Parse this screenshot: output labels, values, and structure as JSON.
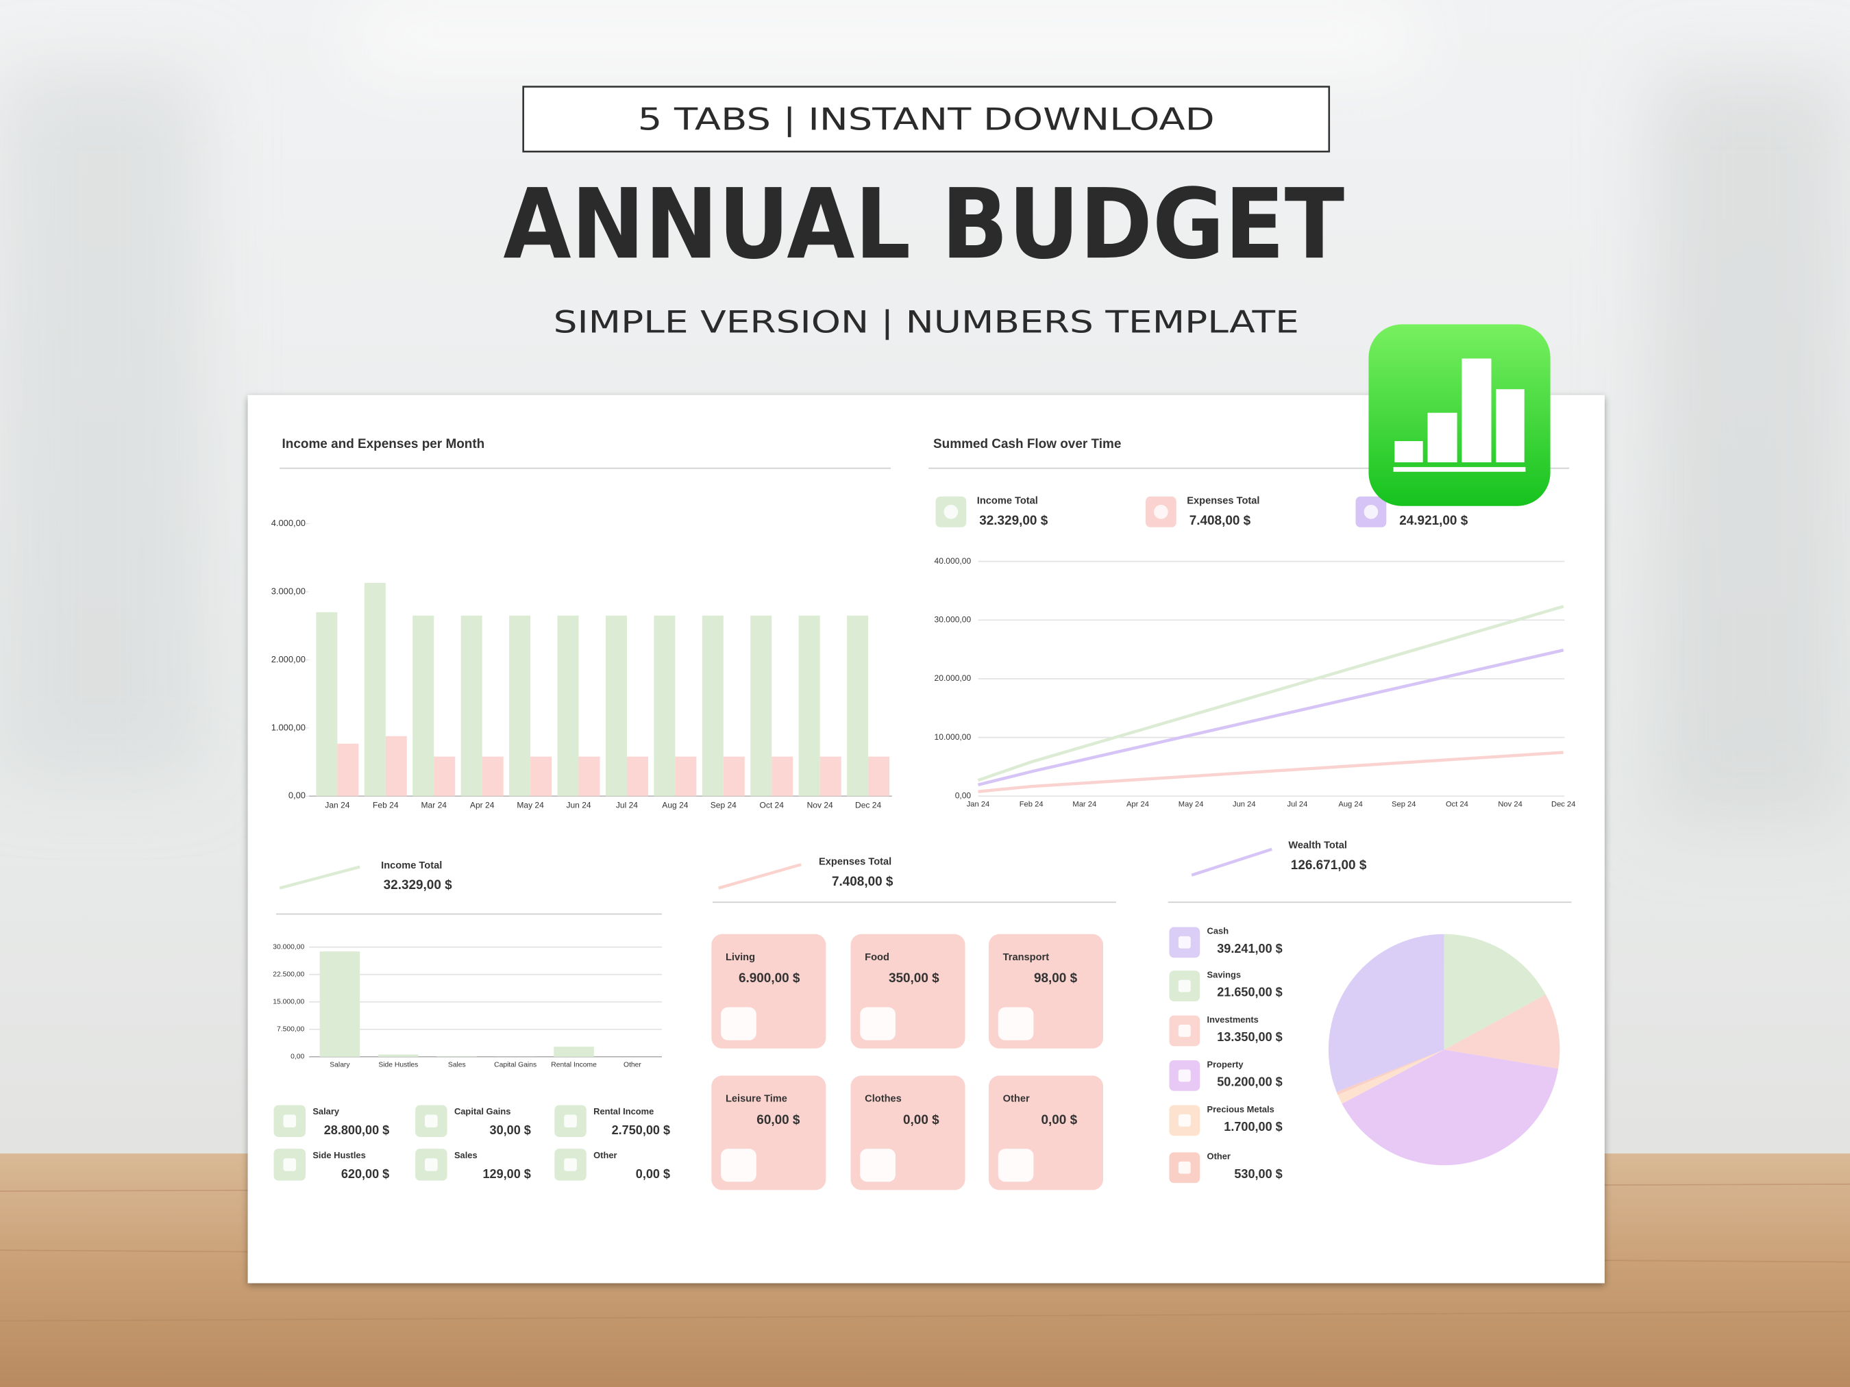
{
  "header": {
    "badge": "5 TABS | INSTANT DOWNLOAD",
    "title": "ANNUAL BUDGET",
    "subtitle": "SIMPLE VERSION | NUMBERS TEMPLATE"
  },
  "chart_data": [
    {
      "type": "bar",
      "title": "Income and Expenses per Month",
      "categories": [
        "Jan 24",
        "Feb 24",
        "Mar 24",
        "Apr 24",
        "May 24",
        "Jun 24",
        "Jul 24",
        "Aug 24",
        "Sep 24",
        "Oct 24",
        "Nov 24",
        "Dec 24"
      ],
      "series": [
        {
          "color": "#dcebd4",
          "values": [
            2700,
            3130,
            2650,
            2650,
            2650,
            2650,
            2650,
            2650,
            2650,
            2650,
            2650,
            2650
          ]
        },
        {
          "color": "#fcd6d2",
          "values": [
            770,
            880,
            580,
            580,
            580,
            580,
            580,
            580,
            580,
            580,
            580,
            580
          ]
        }
      ],
      "ylim": [
        0,
        4000
      ],
      "yticks": [
        {
          "value": 0,
          "label": "0,00"
        },
        {
          "value": 1000,
          "label": "1.000,00"
        },
        {
          "value": 2000,
          "label": "2.000,00"
        },
        {
          "value": 3000,
          "label": "3.000,00"
        },
        {
          "value": 4000,
          "label": "4.000,00"
        }
      ],
      "grid": false
    },
    {
      "type": "line",
      "title": "Summed Cash Flow over Time",
      "categories": [
        "Jan 24",
        "Feb 24",
        "Mar 24",
        "Apr 24",
        "May 24",
        "Jun 24",
        "Jul 24",
        "Aug 24",
        "Sep 24",
        "Oct 24",
        "Nov 24",
        "Dec 24"
      ],
      "series": [
        {
          "name": "Income Total",
          "total": "32.329,00 $",
          "color": "#dcebd4",
          "values": [
            2700,
            5830,
            8480,
            11130,
            13780,
            16430,
            19080,
            21730,
            24380,
            27030,
            29680,
            32330
          ]
        },
        {
          "name": "Expenses Total",
          "total": "7.408,00 $",
          "color": "#fad3d0",
          "values": [
            770,
            1650,
            2230,
            2810,
            3390,
            3970,
            4550,
            5130,
            5710,
            6290,
            6870,
            7450
          ]
        },
        {
          "total": "24.921,00 $",
          "color": "#d5c4f5",
          "values": [
            1930,
            4180,
            6250,
            8320,
            10390,
            12460,
            14530,
            16600,
            18670,
            20740,
            22810,
            24880
          ]
        }
      ],
      "ylim": [
        0,
        40000
      ],
      "yticks": [
        {
          "value": 0,
          "label": "0,00"
        },
        {
          "value": 10000,
          "label": "10.000,00"
        },
        {
          "value": 20000,
          "label": "20.000,00"
        },
        {
          "value": 30000,
          "label": "30.000,00"
        },
        {
          "value": 40000,
          "label": "40.000,00"
        }
      ],
      "grid": true
    },
    {
      "type": "bar",
      "title": "Income Total",
      "total": "32.329,00 $",
      "categories": [
        "Salary",
        "Side Hustles",
        "Sales",
        "Capital Gains",
        "Rental Income",
        "Other"
      ],
      "values": [
        28800,
        620,
        129,
        30,
        2750,
        0
      ],
      "value_labels": [
        "28.800,00 $",
        "620,00 $",
        "129,00 $",
        "30,00 $",
        "2.750,00 $",
        "0,00 $"
      ],
      "color": "#dcebd4",
      "ylim": [
        0,
        30000
      ],
      "yticks": [
        {
          "value": 0,
          "label": "0,00"
        },
        {
          "value": 7500,
          "label": "7.500,00"
        },
        {
          "value": 15000,
          "label": "15.000,00"
        },
        {
          "value": 22500,
          "label": "22.500,00"
        },
        {
          "value": 30000,
          "label": "30.000,00"
        }
      ],
      "grid": true
    },
    {
      "type": "pie",
      "title": "Wealth Total",
      "total": "126.671,00 $",
      "categories": [
        "Cash",
        "Savings",
        "Investments",
        "Property",
        "Precious Metals",
        "Other"
      ],
      "values": [
        39241,
        21650,
        13350,
        50200,
        1700,
        530
      ],
      "value_labels": [
        "39.241,00 $",
        "21.650,00 $",
        "13.350,00 $",
        "50.200,00 $",
        "1.700,00 $",
        "530,00 $"
      ],
      "colors": [
        "#dacdf6",
        "#dcebd4",
        "#fbd5d0",
        "#e8c9f6",
        "#fde3cf",
        "#f9cfc6"
      ]
    }
  ],
  "expenses": {
    "title": "Expenses Total",
    "total": "7.408,00 $",
    "items": [
      {
        "label": "Living",
        "amount": "6.900,00 $"
      },
      {
        "label": "Food",
        "amount": "350,00 $"
      },
      {
        "label": "Transport",
        "amount": "98,00 $"
      },
      {
        "label": "Leisure Time",
        "amount": "60,00 $"
      },
      {
        "label": "Clothes",
        "amount": "0,00 $"
      },
      {
        "label": "Other",
        "amount": "0,00 $"
      }
    ]
  }
}
